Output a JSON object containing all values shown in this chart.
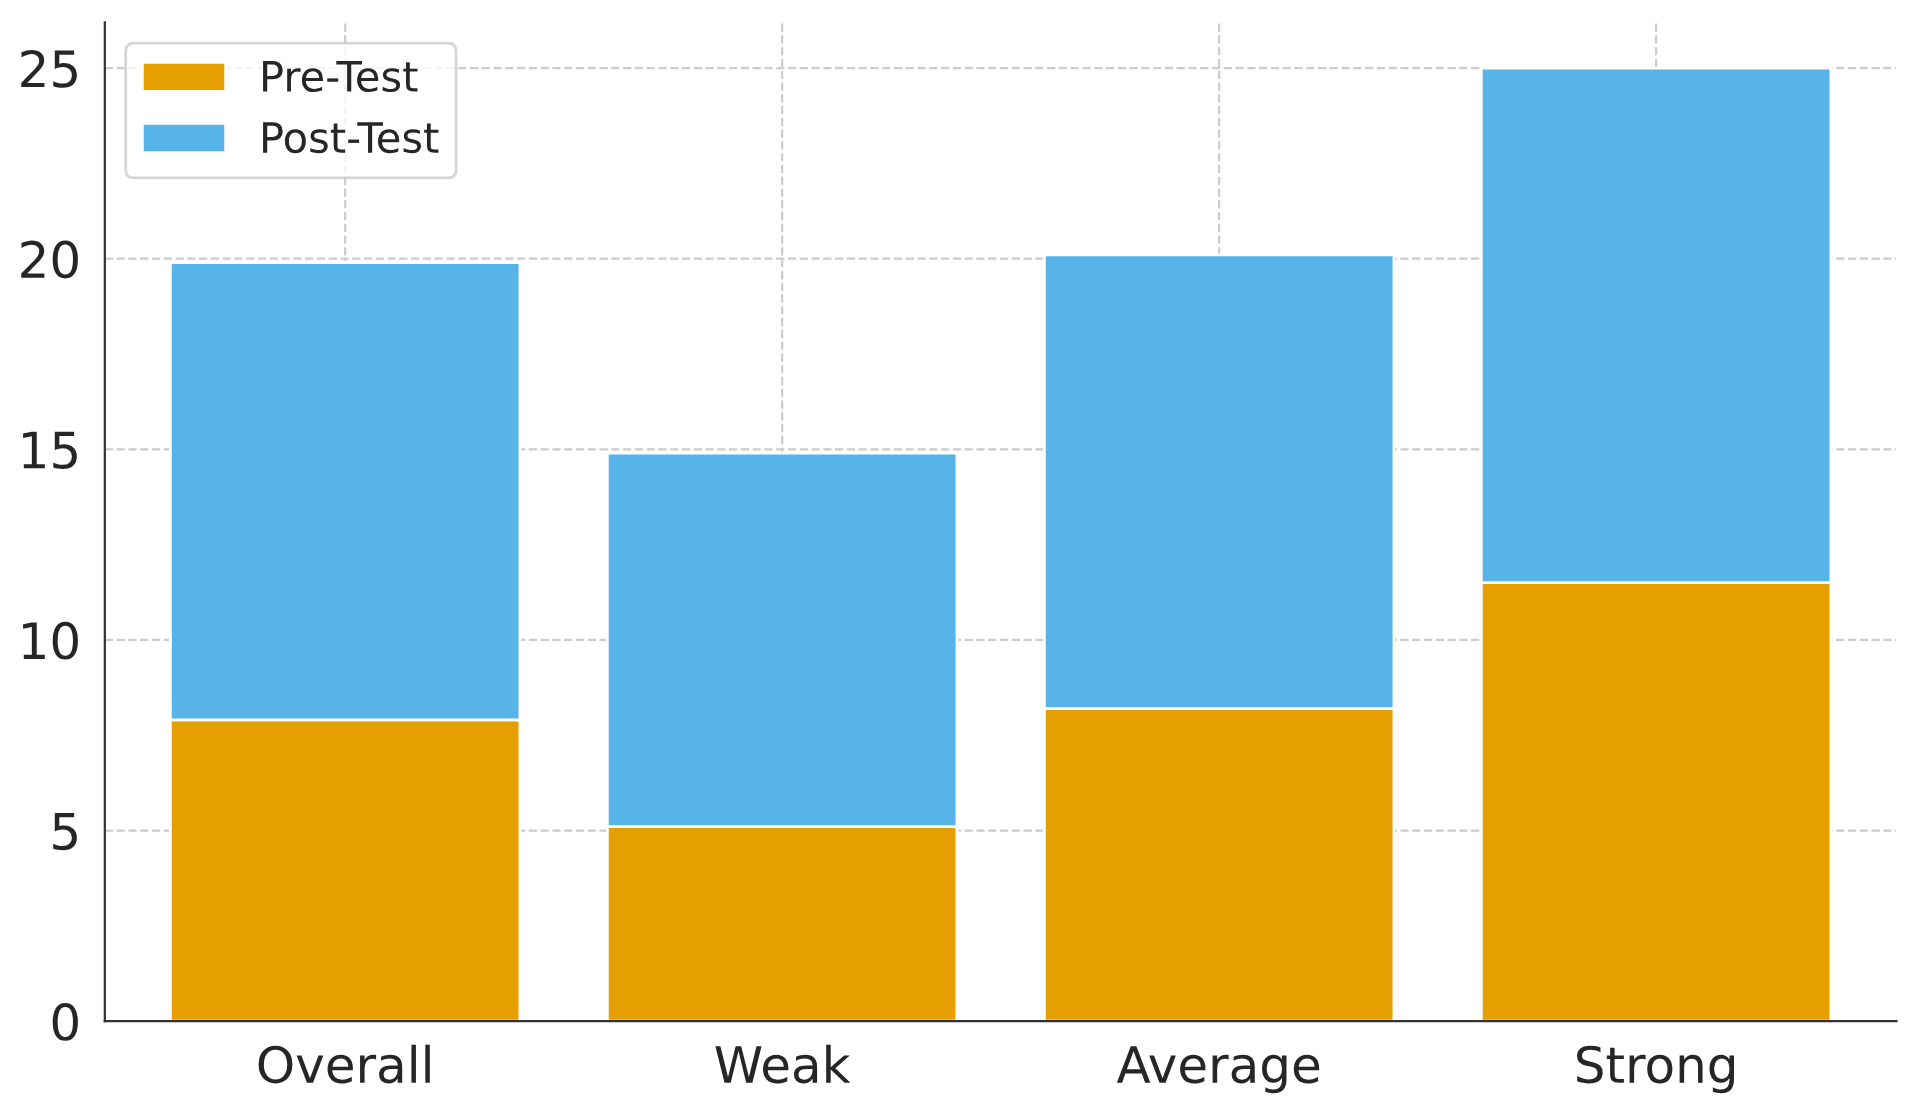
{
  "chart_data": {
    "type": "bar",
    "stacked": true,
    "categories": [
      "Overall",
      "Weak",
      "Average",
      "Strong"
    ],
    "series": [
      {
        "name": "Pre-Test",
        "color": "#e69f00",
        "values": [
          7.9,
          5.1,
          8.2,
          11.5
        ]
      },
      {
        "name": "Post-Test",
        "color": "#56b4e9",
        "values": [
          12.0,
          9.8,
          11.9,
          13.5
        ]
      }
    ],
    "ylim": [
      0,
      26.2
    ],
    "yticks": [
      0,
      5,
      10,
      15,
      20,
      25
    ],
    "grid": true,
    "legend": "top left"
  }
}
